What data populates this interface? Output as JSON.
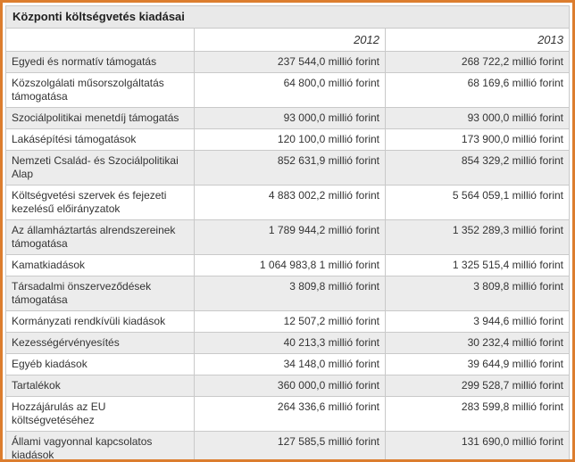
{
  "title": "Központi költségvetés kiadásai",
  "table": {
    "columns": [
      "",
      "2012",
      "2013"
    ],
    "rows": [
      {
        "label": "Egyedi és normatív támogatás",
        "y2012": "237 544,0 millió forint",
        "y2013": "268 722,2 millió forint"
      },
      {
        "label": "Közszolgálati műsorszolgáltatás támogatása",
        "y2012": "64 800,0 millió forint",
        "y2013": "68 169,6 millió forint"
      },
      {
        "label": "Szociálpolitikai menetdíj támogatás",
        "y2012": "93 000,0 millió forint",
        "y2013": "93 000,0 millió forint"
      },
      {
        "label": "Lakásépítési támogatások",
        "y2012": "120 100,0 millió forint",
        "y2013": "173 900,0 millió forint"
      },
      {
        "label": "Nemzeti Család- és Szociálpolitikai Alap",
        "y2012": "852 631,9 millió forint",
        "y2013": "854 329,2 millió forint"
      },
      {
        "label": "Költségvetési szervek és fejezeti kezelésű előirányzatok",
        "y2012": "4 883 002,2 millió forint",
        "y2013": "5 564 059,1 millió forint"
      },
      {
        "label": "Az államháztartás alrendszereinek támogatása",
        "y2012": "1 789 944,2 millió forint",
        "y2013": "1 352 289,3 millió forint"
      },
      {
        "label": "Kamatkiadások",
        "y2012": "1 064 983,8 1 millió forint",
        "y2013": "1 325 515,4 millió forint"
      },
      {
        "label": "Társadalmi önszerveződések támogatása",
        "y2012": "3 809,8 millió forint",
        "y2013": "3 809,8 millió forint"
      },
      {
        "label": "Kormányzati rendkívüli kiadások",
        "y2012": "12 507,2 millió forint",
        "y2013": "3 944,6 millió forint"
      },
      {
        "label": "Kezességérvényesítés",
        "y2012": "40 213,3 millió forint",
        "y2013": "30 232,4 millió forint"
      },
      {
        "label": "Egyéb kiadások",
        "y2012": "34 148,0 millió forint",
        "y2013": "39 644,9 millió forint"
      },
      {
        "label": "Tartalékok",
        "y2012": "360 000,0 millió forint",
        "y2013": "299 528,7 millió forint"
      },
      {
        "label": "Hozzájárulás az EU költségvetéséhez",
        "y2012": "264 336,6 millió forint",
        "y2013": "283 599,8 millió forint"
      },
      {
        "label": "Állami vagyonnal kapcsolatos kiadások",
        "y2012": "127 585,5 millió forint",
        "y2013": "131 690,0 millió forint"
      }
    ]
  },
  "colors": {
    "frame_border": "#dc7d2e",
    "grid_line": "#c9c9c9",
    "title_bg": "#e9e9e9",
    "row_alt_bg": "#ececec",
    "text": "#333333"
  }
}
